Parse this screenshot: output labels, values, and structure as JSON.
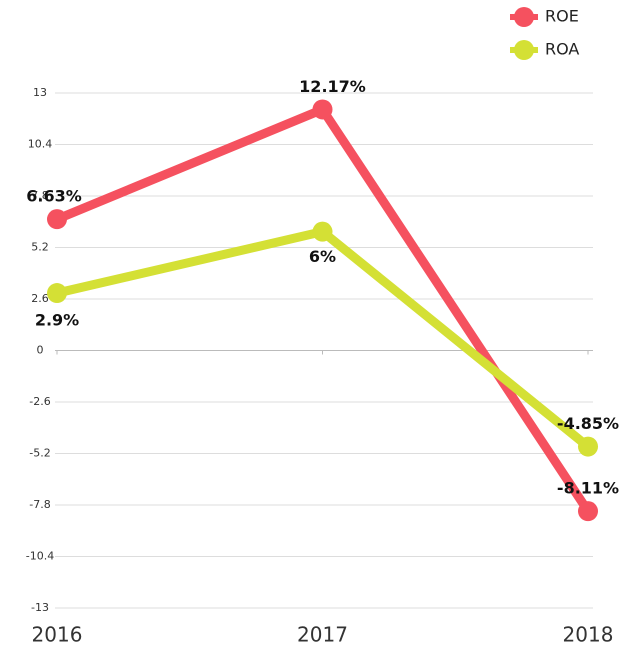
{
  "chart_data": {
    "type": "line",
    "categories": [
      "2016",
      "2017",
      "2018"
    ],
    "series": [
      {
        "name": "ROE",
        "color": "#f5515f",
        "values": [
          6.63,
          12.17,
          -8.11
        ],
        "value_labels": [
          "6.63%",
          "12.17%",
          "-8.11%"
        ]
      },
      {
        "name": "ROA",
        "color": "#d4e035",
        "values": [
          2.9,
          6,
          -4.85
        ],
        "value_labels": [
          "2.9%",
          "6%",
          "-4.85%"
        ]
      }
    ],
    "ylim": [
      -13,
      13
    ],
    "yticks": [
      13,
      10.4,
      7.8,
      5.2,
      2.6,
      0,
      -2.6,
      -5.2,
      -7.8,
      -10.4,
      -13
    ],
    "grid": true,
    "legend": "top-right"
  }
}
